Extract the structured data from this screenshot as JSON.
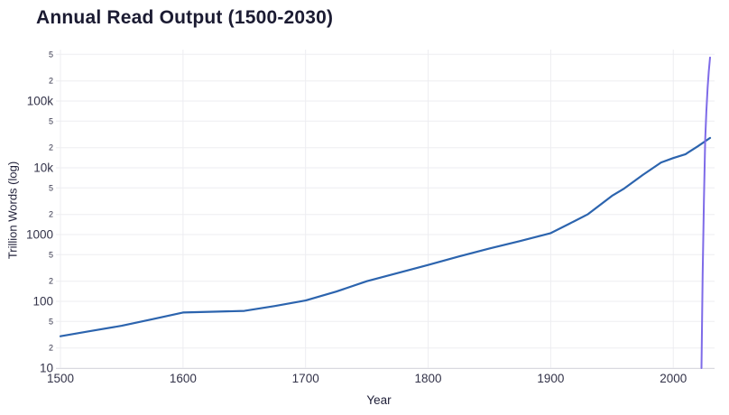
{
  "chart_data": {
    "type": "line",
    "title": "Annual Read Output (1500-2030)",
    "xlabel": "Year",
    "ylabel": "Trillion Words (log)",
    "x_range": [
      1500,
      2030
    ],
    "y_scale": "log",
    "y_range": [
      10,
      520000
    ],
    "grid": true,
    "legend": "none",
    "x_ticks": [
      {
        "v": 1500,
        "label": "1500"
      },
      {
        "v": 1600,
        "label": "1600"
      },
      {
        "v": 1700,
        "label": "1700"
      },
      {
        "v": 1800,
        "label": "1800"
      },
      {
        "v": 1900,
        "label": "1900"
      },
      {
        "v": 2000,
        "label": "2000"
      }
    ],
    "y_ticks": [
      {
        "v": 10,
        "label": "10",
        "major": true
      },
      {
        "v": 20,
        "label": "2",
        "major": false
      },
      {
        "v": 50,
        "label": "5",
        "major": false
      },
      {
        "v": 100,
        "label": "100",
        "major": true
      },
      {
        "v": 200,
        "label": "2",
        "major": false
      },
      {
        "v": 500,
        "label": "5",
        "major": false
      },
      {
        "v": 1000,
        "label": "1000",
        "major": true
      },
      {
        "v": 2000,
        "label": "2",
        "major": false
      },
      {
        "v": 5000,
        "label": "5",
        "major": false
      },
      {
        "v": 10000,
        "label": "10k",
        "major": true
      },
      {
        "v": 20000,
        "label": "2",
        "major": false
      },
      {
        "v": 50000,
        "label": "5",
        "major": false
      },
      {
        "v": 100000,
        "label": "100k",
        "major": true
      },
      {
        "v": 200000,
        "label": "2",
        "major": false
      },
      {
        "v": 500000,
        "label": "5",
        "major": false
      }
    ],
    "series": [
      {
        "name": "blue_series",
        "color": "#2c64ae",
        "stroke_width": 2.2,
        "x": [
          1500,
          1525,
          1550,
          1575,
          1600,
          1625,
          1650,
          1675,
          1700,
          1725,
          1750,
          1775,
          1800,
          1825,
          1850,
          1875,
          1900,
          1915,
          1930,
          1950,
          1960,
          1975,
          1990,
          2000,
          2010,
          2020,
          2030
        ],
        "y": [
          30,
          36,
          43,
          54,
          68,
          70,
          72,
          85,
          103,
          140,
          200,
          265,
          350,
          470,
          620,
          800,
          1050,
          1450,
          2000,
          3800,
          4900,
          7800,
          12000,
          14000,
          16000,
          21000,
          28000
        ]
      },
      {
        "name": "purple_series",
        "color": "#7e6be8",
        "stroke_width": 2,
        "x": [
          2023,
          2024,
          2025,
          2026,
          2027,
          2028,
          2029,
          2030
        ],
        "y": [
          10,
          250,
          3200,
          26000,
          70000,
          158000,
          280000,
          450000
        ]
      }
    ],
    "colors": {
      "title": "#1b1b32",
      "axis_title": "#1f1f38",
      "tick_label": "#333349",
      "grid": "#ededf1",
      "axis_line": "#d9d9e0",
      "background": "#ffffff"
    }
  }
}
